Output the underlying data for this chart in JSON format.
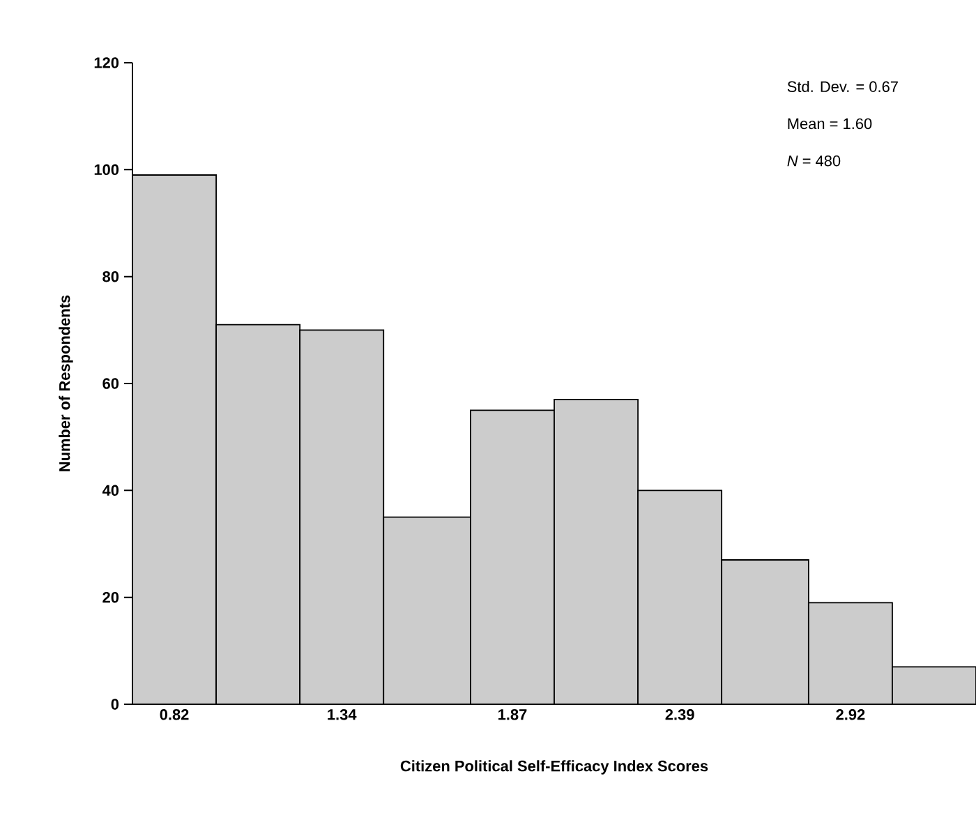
{
  "chart_data": {
    "type": "histogram",
    "xlabel": "Citizen Political Self-Efficacy Index Scores",
    "ylabel": "Number of Respondents",
    "bins": [
      0.69,
      0.95,
      1.21,
      1.47,
      1.74,
      2.0,
      2.26,
      2.52,
      2.79,
      3.05,
      3.31
    ],
    "values": [
      99,
      71,
      70,
      35,
      55,
      57,
      40,
      27,
      19,
      7
    ],
    "color": "#cccccc",
    "xlim": [
      0.69,
      3.31
    ],
    "xticks": [
      0.82,
      1.34,
      1.87,
      2.39,
      2.92
    ],
    "ylim": [
      0,
      120
    ],
    "yticks": [
      0,
      20,
      40,
      60,
      80,
      100,
      120
    ],
    "annotations": [
      "Std. Dev. = 0.67",
      "Mean = 1.60",
      "*N* = 480"
    ],
    "grid": false
  }
}
